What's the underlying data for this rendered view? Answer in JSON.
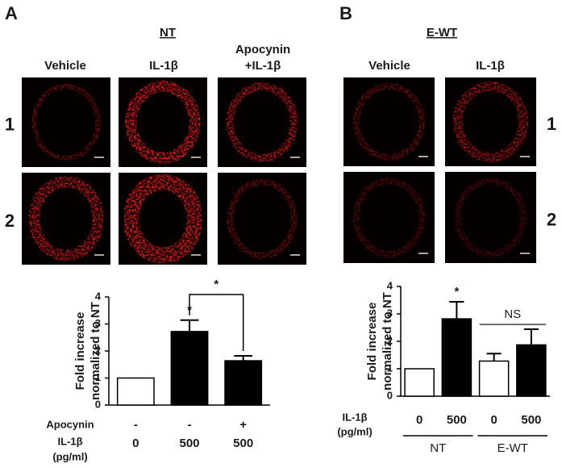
{
  "panel_a": {
    "label": "A",
    "group": "NT",
    "columns": [
      [
        "Vehicle"
      ],
      [
        "IL-1β"
      ],
      [
        "Apocynin",
        "+IL-1β"
      ]
    ],
    "rows": [
      "1",
      "2"
    ]
  },
  "panel_b": {
    "label": "B",
    "group": "E-WT",
    "columns": [
      [
        "Vehicle"
      ],
      [
        "IL-1β"
      ]
    ],
    "rows": [
      "1",
      "2"
    ]
  },
  "chart_data": [
    {
      "type": "bar",
      "ylabel": [
        "Fold increase",
        "normalized to NT"
      ],
      "categories": [
        null,
        null,
        null
      ],
      "values": [
        1,
        2.72,
        1.64
      ],
      "errors": [
        null,
        0.42,
        0.18
      ],
      "colors": [
        "#ffffff",
        "#000000",
        "#000000"
      ],
      "ylim": [
        0,
        4
      ],
      "yticks": [
        0,
        1,
        2,
        3,
        4
      ],
      "x_rows": [
        {
          "name": [
            "Apocynin"
          ],
          "values": [
            "-",
            "-",
            "+"
          ]
        },
        {
          "name": [
            "IL-1β",
            "(pg/ml)"
          ],
          "values": [
            0,
            500,
            500
          ]
        }
      ],
      "annotations": [
        {
          "text": "*",
          "bar": 1
        },
        {
          "text": "*",
          "bracket": [
            1,
            2
          ]
        }
      ]
    },
    {
      "type": "bar",
      "ylabel": [
        "Fold increase",
        "normalized to NT"
      ],
      "categories": [
        null,
        null,
        null,
        null
      ],
      "values": [
        1,
        2.82,
        1.28,
        1.87
      ],
      "errors": [
        null,
        0.62,
        0.27,
        0.57
      ],
      "colors": [
        "#ffffff",
        "#000000",
        "#ffffff",
        "#000000"
      ],
      "ylim": [
        0,
        4
      ],
      "yticks": [
        0,
        1,
        2,
        3,
        4
      ],
      "x_rows": [
        {
          "name": [
            "IL-1β",
            "(pg/ml)"
          ],
          "values": [
            0,
            500,
            0,
            500
          ]
        }
      ],
      "groups": [
        {
          "label": "NT",
          "bars": [
            0,
            1
          ]
        },
        {
          "label": "E-WT",
          "bars": [
            2,
            3
          ]
        }
      ],
      "annotations": [
        {
          "text": "*",
          "bar": 1
        },
        {
          "text": "NS",
          "line": [
            2,
            3
          ]
        }
      ]
    }
  ]
}
